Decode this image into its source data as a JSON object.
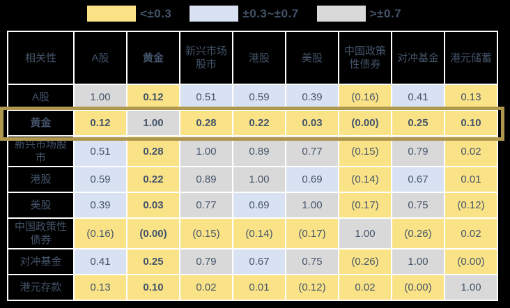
{
  "colors": {
    "page_background": "#000000",
    "low": "#FAE387",
    "mid": "#D9E2F3",
    "high": "#D9D9D9",
    "header_background": "#000000",
    "text": "#44546A",
    "gridline": "#FFFFFF",
    "highlight_border": "#B0974E"
  },
  "legend": {
    "items": [
      {
        "label": "<±0.3",
        "color": "#FAE387"
      },
      {
        "label": "±0.3~±0.7",
        "color": "#D9E2F3"
      },
      {
        "label": ">±0.7",
        "color": "#D9D9D9"
      }
    ]
  },
  "table": {
    "corner_label": "相关性",
    "columns": [
      {
        "label": "A股",
        "bold": false
      },
      {
        "label": "黄金",
        "bold": true
      },
      {
        "label": "新兴市场股市",
        "bold": false
      },
      {
        "label": "港股",
        "bold": false
      },
      {
        "label": "美股",
        "bold": false
      },
      {
        "label": "中国政策性债券",
        "bold": false
      },
      {
        "label": "对冲基金",
        "bold": false
      },
      {
        "label": "港元储蓄",
        "bold": false
      }
    ],
    "rows": [
      {
        "header": "A股",
        "bold": false,
        "highlighted": false,
        "tall": false,
        "cells": [
          {
            "text": "1.00",
            "level": "high",
            "bold": false
          },
          {
            "text": "0.12",
            "level": "low",
            "bold": true
          },
          {
            "text": "0.51",
            "level": "mid",
            "bold": false
          },
          {
            "text": "0.59",
            "level": "mid",
            "bold": false
          },
          {
            "text": "0.39",
            "level": "mid",
            "bold": false
          },
          {
            "text": "(0.16)",
            "level": "low",
            "bold": false
          },
          {
            "text": "0.41",
            "level": "mid",
            "bold": false
          },
          {
            "text": "0.13",
            "level": "low",
            "bold": false
          }
        ]
      },
      {
        "header": "黄金",
        "bold": true,
        "highlighted": true,
        "tall": false,
        "cells": [
          {
            "text": "0.12",
            "level": "low",
            "bold": true
          },
          {
            "text": "1.00",
            "level": "high",
            "bold": true
          },
          {
            "text": "0.28",
            "level": "low",
            "bold": true
          },
          {
            "text": "0.22",
            "level": "low",
            "bold": true
          },
          {
            "text": "0.03",
            "level": "low",
            "bold": true
          },
          {
            "text": "(0.00)",
            "level": "low",
            "bold": true
          },
          {
            "text": "0.25",
            "level": "low",
            "bold": true
          },
          {
            "text": "0.10",
            "level": "low",
            "bold": true
          }
        ]
      },
      {
        "header": "新兴市场股市",
        "bold": false,
        "highlighted": false,
        "tall": true,
        "cells": [
          {
            "text": "0.51",
            "level": "mid",
            "bold": false
          },
          {
            "text": "0.28",
            "level": "low",
            "bold": true
          },
          {
            "text": "1.00",
            "level": "high",
            "bold": false
          },
          {
            "text": "0.89",
            "level": "high",
            "bold": false
          },
          {
            "text": "0.77",
            "level": "high",
            "bold": false
          },
          {
            "text": "(0.15)",
            "level": "low",
            "bold": false
          },
          {
            "text": "0.79",
            "level": "high",
            "bold": false
          },
          {
            "text": "0.02",
            "level": "low",
            "bold": false
          }
        ]
      },
      {
        "header": "港股",
        "bold": false,
        "highlighted": false,
        "tall": false,
        "cells": [
          {
            "text": "0.59",
            "level": "mid",
            "bold": false
          },
          {
            "text": "0.22",
            "level": "low",
            "bold": true
          },
          {
            "text": "0.89",
            "level": "high",
            "bold": false
          },
          {
            "text": "1.00",
            "level": "high",
            "bold": false
          },
          {
            "text": "0.69",
            "level": "mid",
            "bold": false
          },
          {
            "text": "(0.14)",
            "level": "low",
            "bold": false
          },
          {
            "text": "0.67",
            "level": "mid",
            "bold": false
          },
          {
            "text": "0.01",
            "level": "low",
            "bold": false
          }
        ]
      },
      {
        "header": "美股",
        "bold": false,
        "highlighted": false,
        "tall": false,
        "cells": [
          {
            "text": "0.39",
            "level": "mid",
            "bold": false
          },
          {
            "text": "0.03",
            "level": "low",
            "bold": true
          },
          {
            "text": "0.77",
            "level": "high",
            "bold": false
          },
          {
            "text": "0.69",
            "level": "mid",
            "bold": false
          },
          {
            "text": "1.00",
            "level": "high",
            "bold": false
          },
          {
            "text": "(0.17)",
            "level": "low",
            "bold": false
          },
          {
            "text": "0.75",
            "level": "high",
            "bold": false
          },
          {
            "text": "(0.12)",
            "level": "low",
            "bold": false
          }
        ]
      },
      {
        "header": "中国政策性债券",
        "bold": false,
        "highlighted": false,
        "tall": true,
        "cells": [
          {
            "text": "(0.16)",
            "level": "low",
            "bold": false
          },
          {
            "text": "(0.00)",
            "level": "low",
            "bold": true
          },
          {
            "text": "(0.15)",
            "level": "low",
            "bold": false
          },
          {
            "text": "(0.14)",
            "level": "low",
            "bold": false
          },
          {
            "text": "(0.17)",
            "level": "low",
            "bold": false
          },
          {
            "text": "1.00",
            "level": "high",
            "bold": false
          },
          {
            "text": "(0.26)",
            "level": "low",
            "bold": false
          },
          {
            "text": "0.02",
            "level": "low",
            "bold": false
          }
        ]
      },
      {
        "header": "对冲基金",
        "bold": false,
        "highlighted": false,
        "tall": false,
        "cells": [
          {
            "text": "0.41",
            "level": "mid",
            "bold": false
          },
          {
            "text": "0.25",
            "level": "low",
            "bold": true
          },
          {
            "text": "0.79",
            "level": "high",
            "bold": false
          },
          {
            "text": "0.67",
            "level": "mid",
            "bold": false
          },
          {
            "text": "0.75",
            "level": "high",
            "bold": false
          },
          {
            "text": "(0.26)",
            "level": "low",
            "bold": false
          },
          {
            "text": "1.00",
            "level": "high",
            "bold": false
          },
          {
            "text": "(0.00)",
            "level": "low",
            "bold": false
          }
        ]
      },
      {
        "header": "港元存款",
        "bold": false,
        "highlighted": false,
        "tall": false,
        "cells": [
          {
            "text": "0.13",
            "level": "low",
            "bold": false
          },
          {
            "text": "0.10",
            "level": "low",
            "bold": true
          },
          {
            "text": "0.02",
            "level": "low",
            "bold": false
          },
          {
            "text": "0.01",
            "level": "low",
            "bold": false
          },
          {
            "text": "(0.12)",
            "level": "low",
            "bold": false
          },
          {
            "text": "0.02",
            "level": "low",
            "bold": false
          },
          {
            "text": "(0.00)",
            "level": "low",
            "bold": false
          },
          {
            "text": "1.00",
            "level": "high",
            "bold": false
          }
        ]
      }
    ]
  },
  "chart_data": {
    "type": "heatmap",
    "title": "相关性",
    "x_labels": [
      "A股",
      "黄金",
      "新兴市场股市",
      "港股",
      "美股",
      "中国政策性债券",
      "对冲基金",
      "港元储蓄"
    ],
    "y_labels": [
      "A股",
      "黄金",
      "新兴市场股市",
      "港股",
      "美股",
      "中国政策性债券",
      "对冲基金",
      "港元存款"
    ],
    "matrix": [
      [
        1.0,
        0.12,
        0.51,
        0.59,
        0.39,
        -0.16,
        0.41,
        0.13
      ],
      [
        0.12,
        1.0,
        0.28,
        0.22,
        0.03,
        0.0,
        0.25,
        0.1
      ],
      [
        0.51,
        0.28,
        1.0,
        0.89,
        0.77,
        -0.15,
        0.79,
        0.02
      ],
      [
        0.59,
        0.22,
        0.89,
        1.0,
        0.69,
        -0.14,
        0.67,
        0.01
      ],
      [
        0.39,
        0.03,
        0.77,
        0.69,
        1.0,
        -0.17,
        0.75,
        -0.12
      ],
      [
        -0.16,
        0.0,
        -0.15,
        -0.14,
        -0.17,
        1.0,
        -0.26,
        0.02
      ],
      [
        0.41,
        0.25,
        0.79,
        0.67,
        0.75,
        -0.26,
        1.0,
        0.0
      ],
      [
        0.13,
        0.1,
        0.02,
        0.01,
        -0.12,
        0.02,
        0.0,
        1.0
      ]
    ],
    "color_bins": [
      {
        "label": "<±0.3",
        "color": "#FAE387"
      },
      {
        "label": "±0.3~±0.7",
        "color": "#D9E2F3"
      },
      {
        "label": ">±0.7",
        "color": "#D9D9D9"
      }
    ],
    "highlighted_row": "黄金",
    "negative_format": "parentheses",
    "legend_position": "top"
  }
}
